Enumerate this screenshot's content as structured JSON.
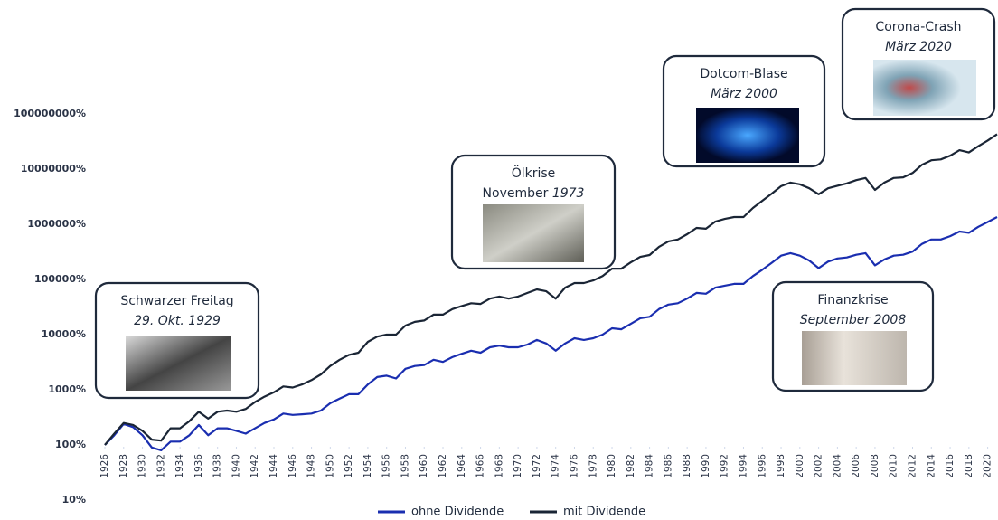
{
  "chart_data": {
    "type": "line",
    "log_y": true,
    "x": [
      1926,
      1927,
      1928,
      1929,
      1930,
      1931,
      1932,
      1933,
      1934,
      1935,
      1936,
      1937,
      1938,
      1939,
      1940,
      1941,
      1942,
      1943,
      1944,
      1945,
      1946,
      1947,
      1948,
      1949,
      1950,
      1951,
      1952,
      1953,
      1954,
      1955,
      1956,
      1957,
      1958,
      1959,
      1960,
      1961,
      1962,
      1963,
      1964,
      1965,
      1966,
      1967,
      1968,
      1969,
      1970,
      1971,
      1972,
      1973,
      1974,
      1975,
      1976,
      1977,
      1978,
      1979,
      1980,
      1981,
      1982,
      1983,
      1984,
      1985,
      1986,
      1987,
      1988,
      1989,
      1990,
      1991,
      1992,
      1993,
      1994,
      1995,
      1996,
      1997,
      1998,
      1999,
      2000,
      2001,
      2002,
      2003,
      2004,
      2005,
      2006,
      2007,
      2008,
      2009,
      2010,
      2011,
      2012,
      2013,
      2014,
      2015,
      2016,
      2017,
      2018,
      2019,
      2020,
      2021
    ],
    "series": [
      {
        "name": "ohne Dividende",
        "color": "#1a2eb0",
        "values": [
          100,
          150,
          240,
          210,
          150,
          90,
          80,
          115,
          115,
          150,
          230,
          150,
          200,
          200,
          180,
          160,
          200,
          250,
          290,
          370,
          350,
          360,
          370,
          420,
          570,
          690,
          830,
          830,
          1250,
          1700,
          1800,
          1600,
          2400,
          2700,
          2800,
          3500,
          3200,
          3900,
          4500,
          5100,
          4700,
          5900,
          6300,
          5900,
          5900,
          6600,
          8000,
          6900,
          5100,
          6900,
          8600,
          8000,
          8600,
          10000,
          13000,
          12500,
          15700,
          19800,
          21000,
          29000,
          35000,
          37000,
          45000,
          57000,
          55000,
          71000,
          77000,
          83000,
          83000,
          115000,
          150000,
          200000,
          270000,
          300000,
          270000,
          220000,
          160000,
          210000,
          240000,
          250000,
          280000,
          300000,
          180000,
          230000,
          270000,
          280000,
          320000,
          440000,
          530000,
          530000,
          610000,
          740000,
          700000,
          900000,
          1100000,
          1350000
        ]
      },
      {
        "name": "mit Dividende",
        "color": "#1a2535",
        "values": [
          100,
          160,
          250,
          230,
          180,
          125,
          120,
          200,
          200,
          270,
          400,
          300,
          400,
          420,
          400,
          450,
          600,
          750,
          900,
          1150,
          1100,
          1250,
          1500,
          1900,
          2700,
          3500,
          4300,
          4700,
          7400,
          9200,
          10000,
          10000,
          14600,
          17000,
          18000,
          23000,
          23000,
          29000,
          33000,
          37000,
          36000,
          45000,
          49000,
          45000,
          49000,
          57000,
          66000,
          61000,
          45000,
          71000,
          86000,
          86000,
          96000,
          115000,
          157000,
          157000,
          204000,
          256000,
          277000,
          390000,
          490000,
          530000,
          660000,
          860000,
          830000,
          1120000,
          1250000,
          1350000,
          1350000,
          1970000,
          2670000,
          3600000,
          4900000,
          5700000,
          5300000,
          4500000,
          3500000,
          4500000,
          5000000,
          5500000,
          6300000,
          6900000,
          4200000,
          5700000,
          6900000,
          7100000,
          8500000,
          12000000,
          14500000,
          15000000,
          17500000,
          22000000,
          20000000,
          26000000,
          33000000,
          43000000
        ]
      }
    ],
    "xlim": [
      1926,
      2021
    ],
    "xticks": [
      1926,
      1928,
      1930,
      1932,
      1934,
      1936,
      1938,
      1940,
      1942,
      1944,
      1946,
      1948,
      1950,
      1952,
      1954,
      1956,
      1958,
      1960,
      1962,
      1964,
      1966,
      1968,
      1970,
      1972,
      1974,
      1976,
      1978,
      1980,
      1982,
      1984,
      1986,
      1988,
      1990,
      1992,
      1994,
      1996,
      1998,
      2000,
      2002,
      2004,
      2006,
      2008,
      2010,
      2012,
      2014,
      2016,
      2018,
      2020
    ],
    "ylim": [
      10,
      100000000
    ],
    "yticks": [
      {
        "value": 10,
        "label": "10%"
      },
      {
        "value": 100,
        "label": "100%"
      },
      {
        "value": 1000,
        "label": "1000%"
      },
      {
        "value": 10000,
        "label": "10000%"
      },
      {
        "value": 100000,
        "label": "100000%"
      },
      {
        "value": 1000000,
        "label": "1000000%"
      },
      {
        "value": 10000000,
        "label": "10000000%"
      },
      {
        "value": 100000000,
        "label": "100000000%"
      }
    ],
    "legend": "bottom",
    "annotations": [
      {
        "lines": [
          [
            {
              "text": "Schwarzer Freitag"
            }
          ],
          [
            {
              "text": "29. Okt. 1929",
              "italic": true
            }
          ]
        ]
      },
      {
        "lines": [
          [
            {
              "text": "Ölkrise"
            }
          ],
          [
            {
              "text": "November"
            },
            {
              "text": "1973",
              "italic": true
            }
          ]
        ]
      },
      {
        "lines": [
          [
            {
              "text": "Dotcom-Blase"
            }
          ],
          [
            {
              "text": "März 2000",
              "italic": true
            }
          ]
        ]
      },
      {
        "lines": [
          [
            {
              "text": "Corona-Crash"
            }
          ],
          [
            {
              "text": "März 2020",
              "italic": true
            }
          ]
        ]
      },
      {
        "lines": [
          [
            {
              "text": "Finanzkrise"
            }
          ],
          [
            {
              "text": "September 2008",
              "italic": true
            }
          ]
        ]
      }
    ]
  }
}
